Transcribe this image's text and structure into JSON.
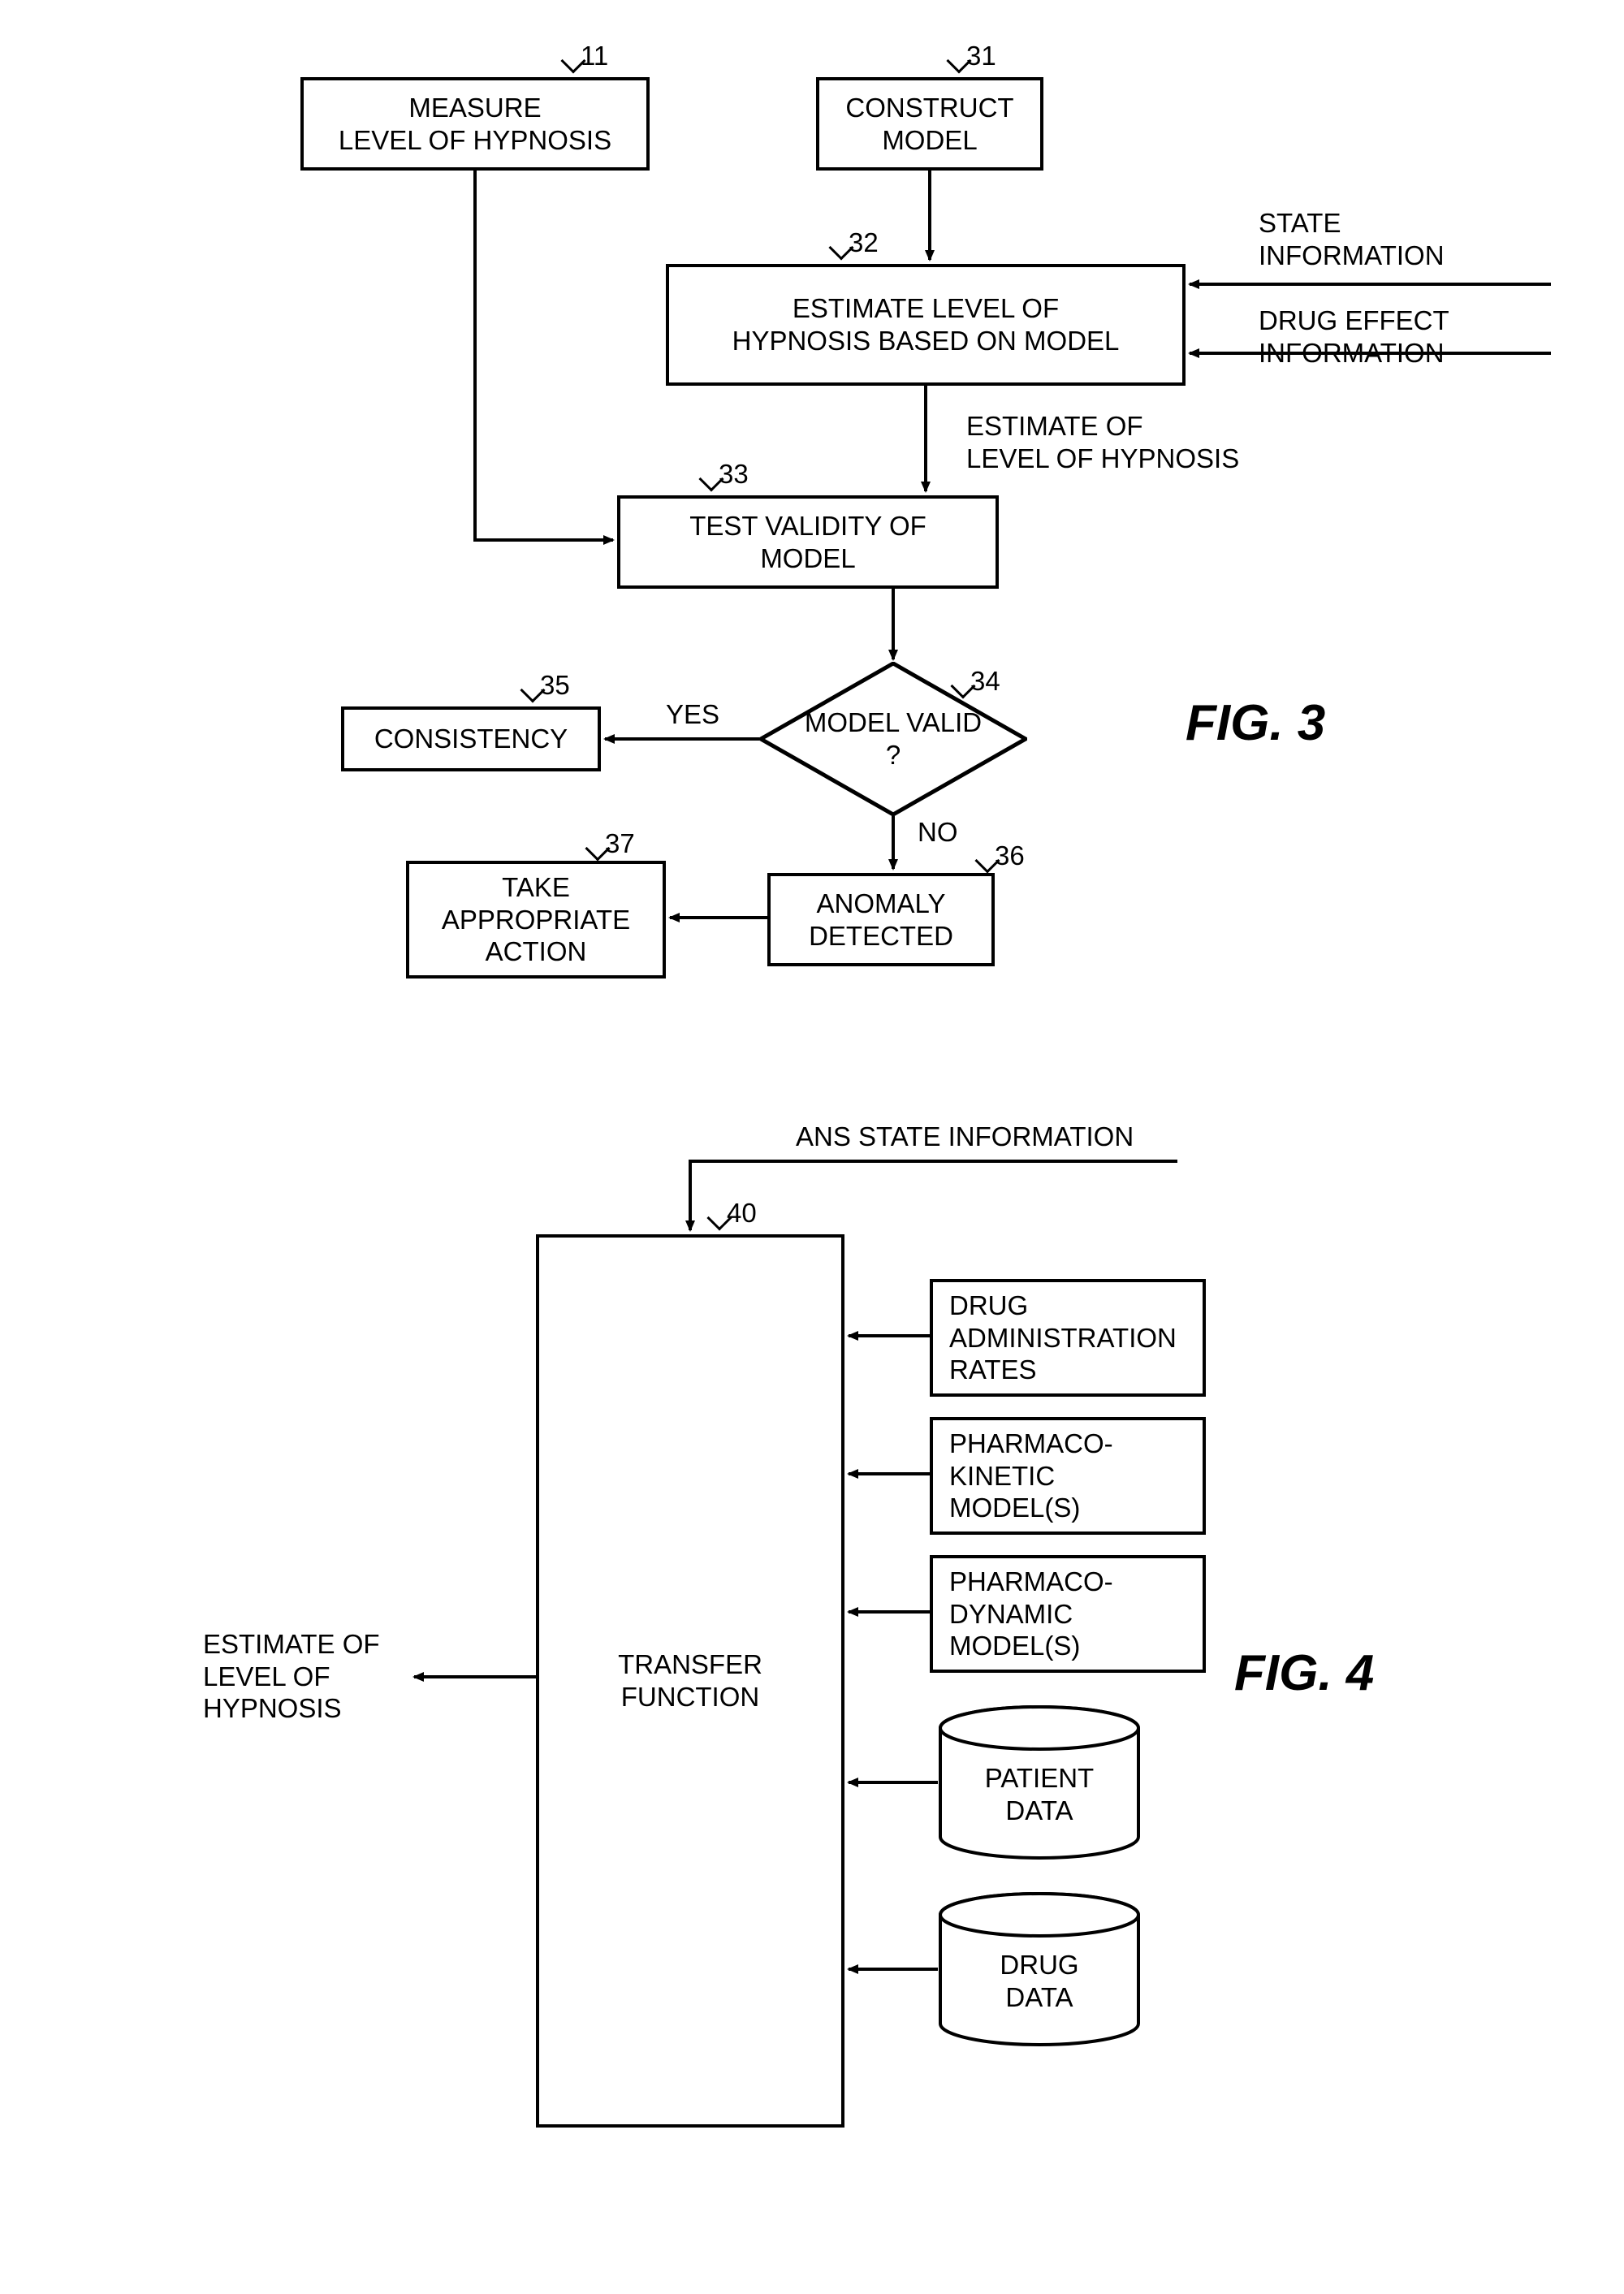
{
  "fig3": {
    "boxes": {
      "measure": {
        "text": "MEASURE\nLEVEL OF HYPNOSIS",
        "ref": "11"
      },
      "construct": {
        "text": "CONSTRUCT\nMODEL",
        "ref": "31"
      },
      "estimate": {
        "text": "ESTIMATE LEVEL OF\nHYPNOSIS BASED ON MODEL",
        "ref": "32"
      },
      "test": {
        "text": "TEST VALIDITY OF\nMODEL",
        "ref": "33"
      },
      "consistency": {
        "text": "CONSISTENCY",
        "ref": "35"
      },
      "anomaly": {
        "text": "ANOMALY\nDETECTED",
        "ref": "36"
      },
      "action": {
        "text": "TAKE\nAPPROPRIATE\nACTION",
        "ref": "37"
      }
    },
    "diamond": {
      "text": "MODEL VALID\n?",
      "ref": "34"
    },
    "labels": {
      "stateInfo": "STATE\nINFORMATION",
      "drugInfo": "DRUG EFFECT\nINFORMATION",
      "estimateOf": "ESTIMATE OF\nLEVEL OF HYPNOSIS",
      "yes": "YES",
      "no": "NO"
    },
    "title": "FIG. 3"
  },
  "fig4": {
    "transfer": {
      "text": "TRANSFER\nFUNCTION",
      "ref": "40"
    },
    "inputs": {
      "ans": "ANS STATE INFORMATION",
      "drugAdmin": "DRUG\nADMINISTRATION\nRATES",
      "pharmacoK": "PHARMACO-\nKINETIC\nMODEL(S)",
      "pharmacoD": "PHARMACO-\nDYNAMIC\nMODEL(S)",
      "patientData": "PATIENT\nDATA",
      "drugData": "DRUG\nDATA"
    },
    "output": "ESTIMATE OF\nLEVEL OF\nHYPNOSIS",
    "title": "FIG. 4"
  },
  "style": {
    "stroke": "#000000",
    "strokeWidth": 4,
    "arrowSize": 24,
    "fontSize": 33,
    "figFontSize": 62
  }
}
